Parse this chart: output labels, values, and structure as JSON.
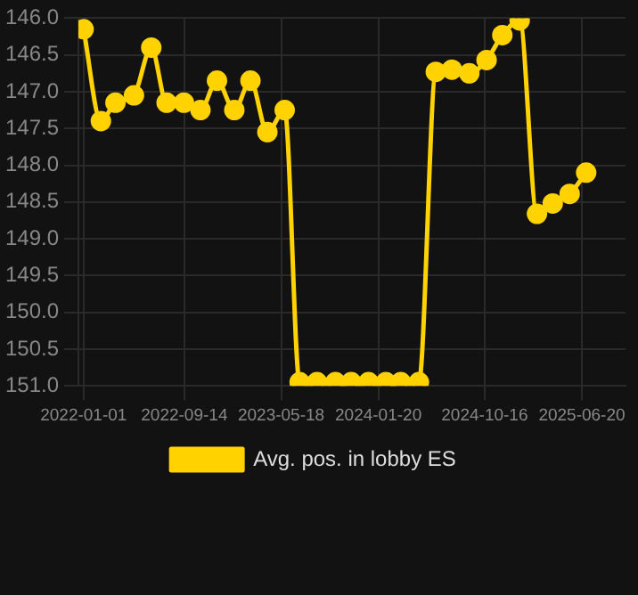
{
  "chart_data": {
    "type": "line",
    "x": [
      "2022-01-01",
      "2022-02-14",
      "2022-03-23",
      "2022-05-09",
      "2022-06-22",
      "2022-07-31",
      "2022-09-13",
      "2022-10-25",
      "2022-12-06",
      "2023-01-19",
      "2023-03-01",
      "2023-04-13",
      "2023-05-27",
      "2023-07-04",
      "2023-08-17",
      "2023-10-03",
      "2023-11-12",
      "2023-12-26",
      "2024-02-08",
      "2024-03-17",
      "2024-05-02",
      "2024-06-14",
      "2024-07-25",
      "2024-09-07",
      "2024-10-21",
      "2024-11-30",
      "2025-01-13",
      "2025-02-26",
      "2025-04-07",
      "2025-05-20",
      "2025-07-01"
    ],
    "series": [
      {
        "name": "Avg. pos. in lobby ES",
        "color": "#ffd200",
        "values": [
          146.15,
          147.4,
          147.15,
          147.05,
          146.4,
          147.15,
          147.15,
          147.25,
          146.85,
          147.25,
          146.85,
          147.55,
          147.25,
          150.95,
          150.95,
          150.95,
          150.95,
          150.95,
          150.95,
          150.95,
          150.95,
          146.73,
          146.7,
          146.75,
          146.57,
          146.23,
          146.03,
          148.66,
          148.52,
          148.39,
          148.1
        ]
      }
    ],
    "xlim": [
      "2021-12-19",
      "2025-10-09"
    ],
    "xticks": [
      "2022-01-01",
      "2022-09-14",
      "2023-05-18",
      "2024-01-20",
      "2024-10-16",
      "2025-06-20"
    ],
    "ylim": [
      151.0,
      146.0
    ],
    "yticks": [
      {
        "value": 146,
        "label": "146.0"
      },
      {
        "value": 146.5,
        "label": "146.5"
      },
      {
        "value": 147,
        "label": "147.0"
      },
      {
        "value": 147.5,
        "label": "147.5"
      },
      {
        "value": 148,
        "label": "148.0"
      },
      {
        "value": 148.5,
        "label": "148.5"
      },
      {
        "value": 149,
        "label": "149.0"
      },
      {
        "value": 149.5,
        "label": "149.5"
      },
      {
        "value": 150,
        "label": "150.0"
      },
      {
        "value": 150.5,
        "label": "150.5"
      },
      {
        "value": 151,
        "label": "151.0"
      }
    ],
    "grid": true,
    "legend": "bottom",
    "marker": "circle",
    "line_style": "solid"
  }
}
